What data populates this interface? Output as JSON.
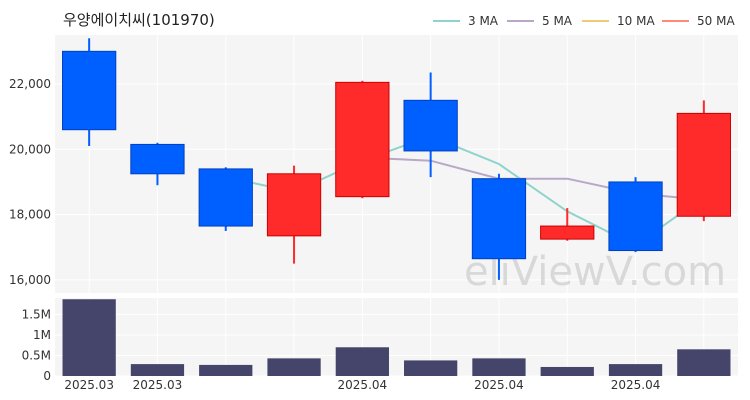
{
  "title": "우양에이치씨(101970)",
  "watermark": "eliViewV.com",
  "legend": [
    {
      "label": "3 MA",
      "color": "#8ed3cc"
    },
    {
      "label": "5 MA",
      "color": "#b8a7c6"
    },
    {
      "label": "10 MA",
      "color": "#f2c879"
    },
    {
      "label": "50 MA",
      "color": "#ff8a7a"
    }
  ],
  "colors": {
    "up": "#ff2a2a",
    "down": "#0060ff",
    "volume": "#45456b",
    "grid": "#ffffff",
    "plot_bg": "#f5f5f5"
  },
  "chart_data": [
    {
      "type": "candlestick",
      "title": "우양에이치씨(101970)",
      "ylim": [
        15600,
        23500
      ],
      "yticks": [
        16000,
        18000,
        20000,
        22000
      ],
      "ytick_labels": [
        "16,000",
        "18,000",
        "20,000",
        "22,000"
      ],
      "candles": [
        {
          "open": 23000,
          "high": 23400,
          "low": 20100,
          "close": 20600
        },
        {
          "open": 20150,
          "high": 20200,
          "low": 18900,
          "close": 19250
        },
        {
          "open": 19400,
          "high": 19450,
          "low": 17500,
          "close": 17650
        },
        {
          "open": 17350,
          "high": 19500,
          "low": 16500,
          "close": 19250
        },
        {
          "open": 18550,
          "high": 22100,
          "low": 18500,
          "close": 22050
        },
        {
          "open": 21500,
          "high": 22350,
          "low": 19150,
          "close": 19950
        },
        {
          "open": 19100,
          "high": 19250,
          "low": 16000,
          "close": 16650
        },
        {
          "open": 17250,
          "high": 18200,
          "low": 17200,
          "close": 17650
        },
        {
          "open": 19000,
          "high": 19150,
          "low": 16850,
          "close": 16900
        },
        {
          "open": 17950,
          "high": 21500,
          "low": 17800,
          "close": 21100
        }
      ],
      "ma": [
        {
          "name": "3 MA",
          "color": "#8ed3cc",
          "values": [
            null,
            null,
            19150,
            18700,
            19650,
            20400,
            19550,
            18100,
            17050,
            18550
          ]
        },
        {
          "name": "5 MA",
          "color": "#b8a7c6",
          "values": [
            null,
            null,
            null,
            null,
            19750,
            19650,
            19100,
            19100,
            18650,
            18450
          ]
        }
      ]
    },
    {
      "type": "bar",
      "ylim": [
        0,
        1900000
      ],
      "yticks": [
        0,
        500000,
        1000000,
        1500000
      ],
      "ytick_labels": [
        "0",
        "0.5M",
        "1M",
        "1.5M"
      ],
      "values": [
        1870000,
        290000,
        270000,
        430000,
        700000,
        380000,
        430000,
        220000,
        290000,
        650000
      ],
      "xtick_labels": [
        {
          "index": 0,
          "label": "2025.03"
        },
        {
          "index": 1,
          "label": "2025.03"
        },
        {
          "index": 4,
          "label": "2025.04"
        },
        {
          "index": 6,
          "label": "2025.04"
        },
        {
          "index": 8,
          "label": "2025.04"
        }
      ]
    }
  ]
}
